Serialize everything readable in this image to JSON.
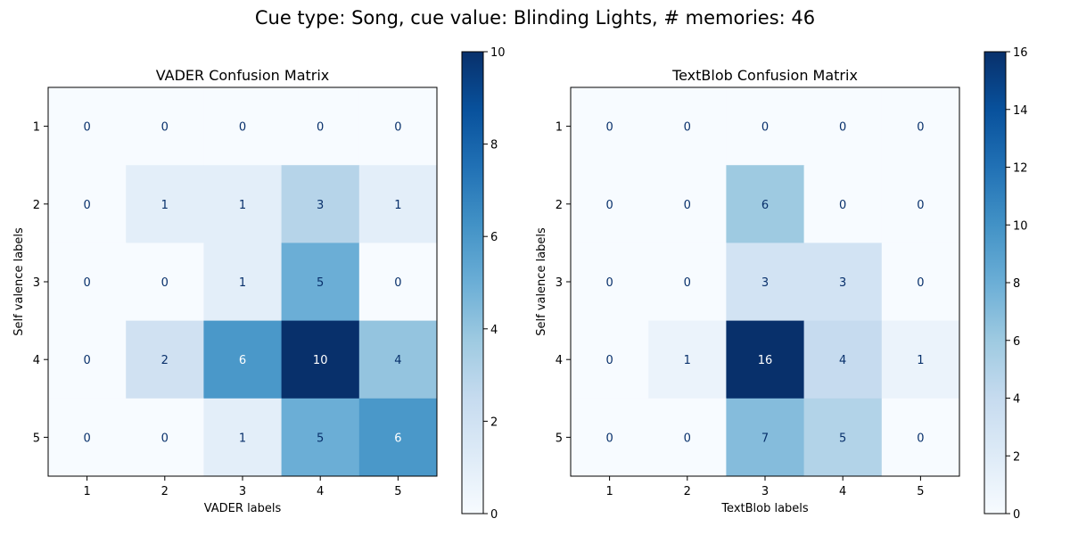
{
  "suptitle": "Cue type: Song, cue value: Blinding Lights, # memories: 46",
  "colormap": {
    "name": "Blues",
    "stops": [
      "#f7fbff",
      "#deebf7",
      "#c6dbef",
      "#9ecae1",
      "#6baed6",
      "#4292c6",
      "#2171b5",
      "#08519c",
      "#08306b"
    ],
    "text_low_color": "#08306b",
    "text_high_color": "#ffffff"
  },
  "chart_data": [
    {
      "type": "heatmap",
      "title": "VADER Confusion Matrix",
      "xlabel": "VADER labels",
      "ylabel": "Self valence labels",
      "x_ticks": [
        "1",
        "2",
        "3",
        "4",
        "5"
      ],
      "y_ticks": [
        "1",
        "2",
        "3",
        "4",
        "5"
      ],
      "matrix": [
        [
          0,
          0,
          0,
          0,
          0
        ],
        [
          0,
          1,
          1,
          3,
          1
        ],
        [
          0,
          0,
          1,
          5,
          0
        ],
        [
          0,
          2,
          6,
          10,
          4
        ],
        [
          0,
          0,
          1,
          5,
          6
        ]
      ],
      "colorbar": {
        "min": 0,
        "max": 10,
        "ticks": [
          "0",
          "2",
          "4",
          "6",
          "8",
          "10"
        ]
      }
    },
    {
      "type": "heatmap",
      "title": "TextBlob Confusion Matrix",
      "xlabel": "TextBlob labels",
      "ylabel": "Self valence labels",
      "x_ticks": [
        "1",
        "2",
        "3",
        "4",
        "5"
      ],
      "y_ticks": [
        "1",
        "2",
        "3",
        "4",
        "5"
      ],
      "matrix": [
        [
          0,
          0,
          0,
          0,
          0
        ],
        [
          0,
          0,
          6,
          0,
          0
        ],
        [
          0,
          0,
          3,
          3,
          0
        ],
        [
          0,
          1,
          16,
          4,
          1
        ],
        [
          0,
          0,
          7,
          5,
          0
        ]
      ],
      "colorbar": {
        "min": 0,
        "max": 16,
        "ticks": [
          "0",
          "2",
          "4",
          "6",
          "8",
          "10",
          "12",
          "14",
          "16"
        ]
      }
    }
  ]
}
